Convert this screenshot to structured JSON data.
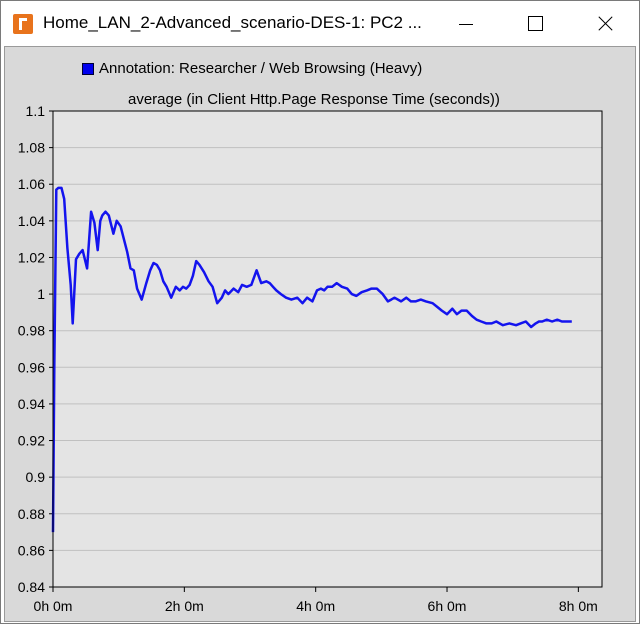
{
  "window": {
    "title": "Home_LAN_2-Advanced_scenario-DES-1: PC2 ...",
    "controls": [
      "minimize-button",
      "maximize-button",
      "close-button"
    ]
  },
  "chart_data": {
    "type": "line",
    "title": "average (in Client Http.Page Response Time (seconds))",
    "xlabel": "",
    "ylabel": "",
    "xlim": [
      0,
      8.36
    ],
    "ylim": [
      0.84,
      1.1
    ],
    "x_ticks": [
      0,
      2,
      4,
      6,
      8
    ],
    "x_tick_labels": [
      "0h 0m",
      "2h 0m",
      "4h 0m",
      "6h 0m",
      "8h 0m"
    ],
    "y_ticks": [
      0.84,
      0.86,
      0.88,
      0.9,
      0.92,
      0.94,
      0.96,
      0.98,
      1,
      1.02,
      1.04,
      1.06,
      1.08,
      1.1
    ],
    "y_tick_labels": [
      "0.84",
      "0.86",
      "0.88",
      "0.9",
      "0.92",
      "0.94",
      "0.96",
      "0.98",
      "1",
      "1.02",
      "1.04",
      "1.06",
      "1.08",
      "1.1"
    ],
    "grid": true,
    "legend_position": "top",
    "background": "#e4e4e4",
    "series": [
      {
        "name": "Annotation: Researcher / Web Browsing (Heavy)",
        "color": "#1414ee",
        "x": [
          0.0,
          0.02,
          0.05,
          0.08,
          0.1,
          0.13,
          0.17,
          0.22,
          0.27,
          0.3,
          0.35,
          0.4,
          0.45,
          0.52,
          0.58,
          0.63,
          0.68,
          0.72,
          0.75,
          0.8,
          0.85,
          0.92,
          0.97,
          1.03,
          1.08,
          1.13,
          1.18,
          1.23,
          1.28,
          1.35,
          1.42,
          1.48,
          1.53,
          1.58,
          1.63,
          1.68,
          1.73,
          1.8,
          1.87,
          1.93,
          1.98,
          2.03,
          2.08,
          2.13,
          2.18,
          2.23,
          2.3,
          2.37,
          2.43,
          2.5,
          2.57,
          2.62,
          2.67,
          2.75,
          2.82,
          2.88,
          2.95,
          3.02,
          3.1,
          3.17,
          3.25,
          3.3,
          3.35,
          3.4,
          3.47,
          3.55,
          3.63,
          3.72,
          3.8,
          3.87,
          3.95,
          4.02,
          4.08,
          4.13,
          4.18,
          4.25,
          4.32,
          4.4,
          4.48,
          4.55,
          4.62,
          4.7,
          4.78,
          4.85,
          4.93,
          5.02,
          5.1,
          5.15,
          5.2,
          5.3,
          5.38,
          5.45,
          5.52,
          5.6,
          5.68,
          5.78,
          5.85,
          5.92,
          6.0,
          6.08,
          6.15,
          6.22,
          6.3,
          6.38,
          6.45,
          6.52,
          6.6,
          6.68,
          6.75,
          6.85,
          6.95,
          7.05,
          7.12,
          7.2,
          7.28,
          7.35,
          7.4,
          7.45,
          7.52,
          7.6,
          7.68,
          7.75,
          7.82,
          7.9
        ],
        "values": [
          0.87,
          0.96,
          1.057,
          1.058,
          1.058,
          1.058,
          1.052,
          1.025,
          1.005,
          0.984,
          1.019,
          1.022,
          1.024,
          1.014,
          1.045,
          1.039,
          1.024,
          1.04,
          1.043,
          1.045,
          1.043,
          1.033,
          1.04,
          1.037,
          1.03,
          1.023,
          1.014,
          1.013,
          1.003,
          0.997,
          1.006,
          1.013,
          1.017,
          1.016,
          1.013,
          1.007,
          1.004,
          0.998,
          1.004,
          1.002,
          1.004,
          1.003,
          1.005,
          1.01,
          1.018,
          1.016,
          1.012,
          1.007,
          1.004,
          0.995,
          0.998,
          1.002,
          1.0,
          1.003,
          1.001,
          1.005,
          1.004,
          1.005,
          1.013,
          1.006,
          1.007,
          1.006,
          1.004,
          1.002,
          1.0,
          0.998,
          0.997,
          0.998,
          0.995,
          0.998,
          0.996,
          1.002,
          1.003,
          1.002,
          1.004,
          1.004,
          1.006,
          1.004,
          1.003,
          1.0,
          0.999,
          1.001,
          1.002,
          1.003,
          1.003,
          1.0,
          0.996,
          0.997,
          0.998,
          0.996,
          0.998,
          0.996,
          0.996,
          0.997,
          0.996,
          0.995,
          0.993,
          0.991,
          0.989,
          0.992,
          0.989,
          0.991,
          0.991,
          0.988,
          0.986,
          0.985,
          0.984,
          0.984,
          0.985,
          0.983,
          0.984,
          0.983,
          0.984,
          0.985,
          0.982,
          0.984,
          0.985,
          0.985,
          0.986,
          0.985,
          0.986,
          0.985,
          0.985,
          0.985
        ]
      }
    ]
  }
}
